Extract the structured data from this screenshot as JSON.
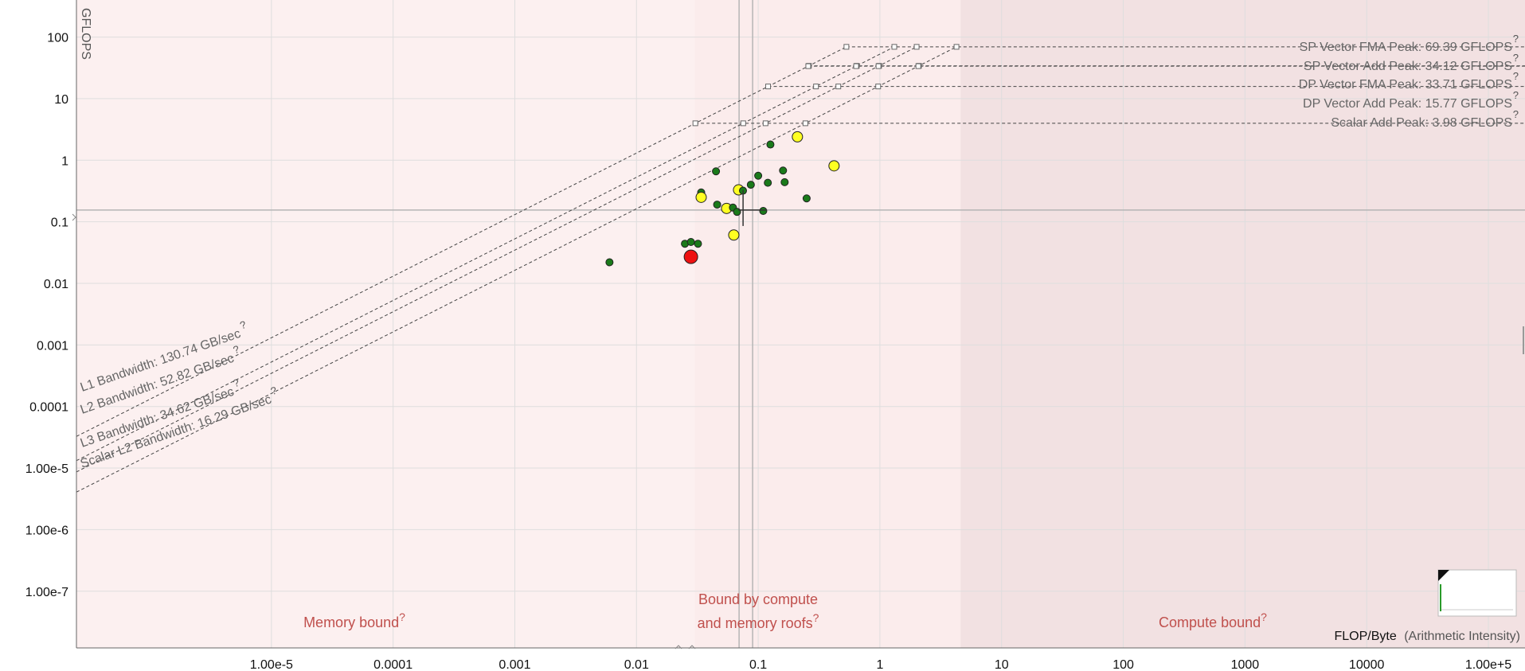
{
  "chart_data": {
    "type": "scatter",
    "title": "",
    "xlabel": "FLOP/Byte",
    "xlabel_note": "(Arithmetic Intensity)",
    "ylabel": "GFLOPS",
    "x_scale": "log",
    "y_scale": "log",
    "xlim": [
      2.5e-07,
      200000
    ],
    "ylim": [
      1.2e-08,
      400
    ],
    "x_ticks": [
      {
        "v": 1e-05,
        "label": "1.00e-5"
      },
      {
        "v": 0.0001,
        "label": "0.0001"
      },
      {
        "v": 0.001,
        "label": "0.001"
      },
      {
        "v": 0.01,
        "label": "0.01"
      },
      {
        "v": 0.1,
        "label": "0.1"
      },
      {
        "v": 1,
        "label": "1"
      },
      {
        "v": 10,
        "label": "10"
      },
      {
        "v": 100,
        "label": "100"
      },
      {
        "v": 1000,
        "label": "1000"
      },
      {
        "v": 10000,
        "label": "10000"
      },
      {
        "v": 100000,
        "label": "1.00e+5"
      }
    ],
    "y_ticks": [
      {
        "v": 100,
        "label": "100"
      },
      {
        "v": 10,
        "label": "10"
      },
      {
        "v": 1,
        "label": "1"
      },
      {
        "v": 0.1,
        "label": "0.1"
      },
      {
        "v": 0.01,
        "label": "0.01"
      },
      {
        "v": 0.001,
        "label": "0.001"
      },
      {
        "v": 0.0001,
        "label": "0.0001"
      },
      {
        "v": 1e-05,
        "label": "1.00e-5"
      },
      {
        "v": 1e-06,
        "label": "1.00e-6"
      },
      {
        "v": 1e-07,
        "label": "1.00e-7"
      }
    ],
    "grid": true,
    "compute_roofs": [
      {
        "label": "SP Vector FMA Peak: 69.39 GFLOPS",
        "gflops": 69.39
      },
      {
        "label": "SP Vector Add Peak: 34.12 GFLOPS",
        "gflops": 34.12
      },
      {
        "label": "DP Vector FMA Peak: 33.71 GFLOPS",
        "gflops": 33.71
      },
      {
        "label": "DP Vector Add Peak: 15.77 GFLOPS",
        "gflops": 15.77
      },
      {
        "label": "Scalar Add Peak: 3.98 GFLOPS",
        "gflops": 3.98
      }
    ],
    "memory_roofs": [
      {
        "label": "L1 Bandwidth: 130.74 GB/sec",
        "gbps": 130.74
      },
      {
        "label": "L2 Bandwidth: 52.82 GB/sec",
        "gbps": 52.82
      },
      {
        "label": "L3 Bandwidth: 34.62 GB/sec",
        "gbps": 34.62
      },
      {
        "label": "Scalar L2 Bandwidth: 16.29 GB/sec",
        "gbps": 16.29
      }
    ],
    "regions": [
      {
        "label": "Memory bound",
        "x_from": 2.5e-07,
        "x_to": 0.03
      },
      {
        "label": "Bound by compute and memory roofs",
        "x_from": 0.03,
        "x_to": 4.6
      },
      {
        "label": "Compute bound",
        "x_from": 4.6,
        "x_to": 200000
      }
    ],
    "crosshair": {
      "x": 0.09,
      "y": 0.155
    },
    "points": [
      {
        "x": 0.006,
        "y": 0.022,
        "color": "green",
        "size": "small"
      },
      {
        "x": 0.025,
        "y": 0.044,
        "color": "green",
        "size": "small"
      },
      {
        "x": 0.028,
        "y": 0.047,
        "color": "green",
        "size": "small"
      },
      {
        "x": 0.032,
        "y": 0.044,
        "color": "green",
        "size": "small"
      },
      {
        "x": 0.028,
        "y": 0.027,
        "color": "red",
        "size": "large"
      },
      {
        "x": 0.034,
        "y": 0.3,
        "color": "green",
        "size": "small"
      },
      {
        "x": 0.034,
        "y": 0.25,
        "color": "yellow",
        "size": "medium"
      },
      {
        "x": 0.045,
        "y": 0.66,
        "color": "green",
        "size": "small"
      },
      {
        "x": 0.046,
        "y": 0.19,
        "color": "green",
        "size": "small"
      },
      {
        "x": 0.055,
        "y": 0.165,
        "color": "yellow",
        "size": "medium"
      },
      {
        "x": 0.062,
        "y": 0.17,
        "color": "green",
        "size": "small"
      },
      {
        "x": 0.067,
        "y": 0.145,
        "color": "green",
        "size": "small"
      },
      {
        "x": 0.063,
        "y": 0.061,
        "color": "yellow",
        "size": "medium"
      },
      {
        "x": 0.069,
        "y": 0.33,
        "color": "yellow",
        "size": "medium"
      },
      {
        "x": 0.075,
        "y": 0.32,
        "color": "green",
        "size": "small"
      },
      {
        "x": 0.087,
        "y": 0.4,
        "color": "green",
        "size": "small"
      },
      {
        "x": 0.1,
        "y": 0.56,
        "color": "green",
        "size": "small"
      },
      {
        "x": 0.11,
        "y": 0.15,
        "color": "green",
        "size": "small"
      },
      {
        "x": 0.12,
        "y": 0.43,
        "color": "green",
        "size": "small"
      },
      {
        "x": 0.126,
        "y": 1.8,
        "color": "green",
        "size": "small"
      },
      {
        "x": 0.16,
        "y": 0.68,
        "color": "green",
        "size": "small"
      },
      {
        "x": 0.165,
        "y": 0.44,
        "color": "green",
        "size": "small"
      },
      {
        "x": 0.21,
        "y": 2.4,
        "color": "yellow",
        "size": "medium"
      },
      {
        "x": 0.25,
        "y": 0.24,
        "color": "green",
        "size": "small"
      },
      {
        "x": 0.42,
        "y": 0.81,
        "color": "yellow",
        "size": "medium"
      }
    ]
  },
  "colors": {
    "point_green": "#1a7a1a",
    "point_yellow": "#ffff22",
    "point_red": "#ee1111",
    "region_text": "#c0504d",
    "region_fill_light": "#fcf0f0",
    "region_fill_dark": "#f2e1e2"
  },
  "question_mark": "?"
}
